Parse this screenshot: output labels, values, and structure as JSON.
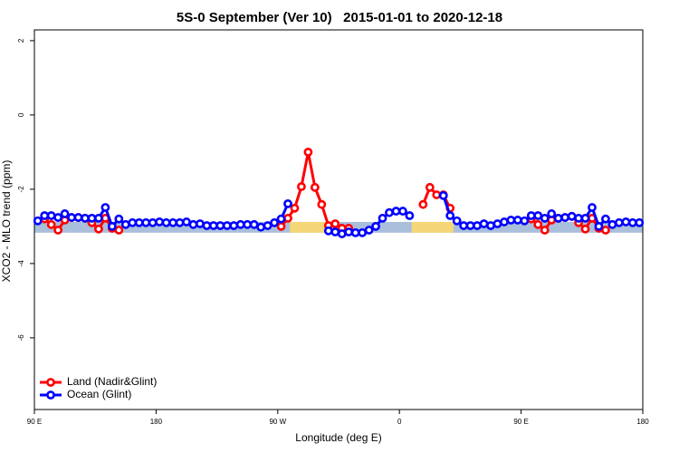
{
  "chart_data": {
    "type": "line",
    "title": "5S-0 September (Ver 10)   2015-01-01 to 2020-12-18",
    "x_label": "Longitude (deg E)",
    "y_label": "XCO2 - MLO trend (ppm)",
    "xlim": [
      90,
      540
    ],
    "xticks": [
      {
        "value": 90,
        "label": "90 E"
      },
      {
        "value": 180,
        "label": "180"
      },
      {
        "value": 270,
        "label": "90 W"
      },
      {
        "value": 360,
        "label": "0"
      },
      {
        "value": 450,
        "label": "90 E"
      },
      {
        "value": 540,
        "label": "180"
      }
    ],
    "ylim": [
      -7.93,
      2.29
    ],
    "yticks": [
      2,
      0,
      -2,
      -4,
      -6
    ],
    "legend": "bottom-left",
    "band": {
      "ylim": [
        -3.17,
        -2.88
      ],
      "color": "#a9bfdc"
    },
    "highlight": {
      "color": "#f5d778",
      "ranges": [
        [
          279,
          306
        ],
        [
          369,
          400
        ]
      ]
    },
    "x": [
      92.5,
      97.5,
      102.5,
      107.5,
      112.5,
      117.5,
      122.5,
      127.5,
      132.5,
      137.5,
      142.5,
      147.5,
      152.5,
      157.5,
      162.5,
      167.5,
      172.5,
      177.5,
      182.5,
      187.5,
      192.5,
      197.5,
      202.5,
      207.5,
      212.5,
      217.5,
      222.5,
      227.5,
      232.5,
      237.5,
      242.5,
      247.5,
      252.5,
      257.5,
      262.5,
      267.5,
      272.5,
      277.5,
      282.5,
      287.5,
      292.5,
      297.5,
      302.5,
      307.5,
      312.5,
      317.5,
      322.5,
      327.5,
      332.5,
      337.5,
      342.5,
      347.5,
      352.5,
      357.5,
      362.5,
      367.5,
      372.5,
      377.5,
      382.5,
      387.5,
      392.5,
      397.5,
      402.5,
      407.5,
      412.5,
      417.5,
      422.5,
      427.5,
      432.5,
      437.5,
      442.5,
      447.5,
      452.5,
      457.5,
      462.5,
      467.5,
      472.5,
      477.5,
      482.5,
      487.5,
      492.5,
      497.5,
      502.5,
      507.5,
      512.5,
      517.5,
      522.5,
      527.5,
      532.5,
      537.5
    ],
    "series": [
      {
        "name": "Land (Nadir&Glint)",
        "color": "#ff0000",
        "values": [
          null,
          -2.8,
          -2.95,
          -3.1,
          -2.83,
          -2.76,
          -2.76,
          -2.78,
          -2.9,
          -3.07,
          -2.78,
          -3.05,
          -3.1,
          null,
          null,
          null,
          null,
          null,
          null,
          null,
          null,
          null,
          null,
          null,
          null,
          null,
          null,
          null,
          null,
          null,
          null,
          null,
          null,
          null,
          null,
          null,
          -3.0,
          -2.78,
          -2.51,
          -1.93,
          -1.0,
          -1.95,
          -2.41,
          -2.98,
          -2.93,
          -3.05,
          -3.05,
          null,
          null,
          null,
          null,
          null,
          null,
          null,
          null,
          null,
          null,
          -2.41,
          -1.95,
          -2.15,
          -2.15,
          -2.51,
          null,
          null,
          null,
          null,
          null,
          null,
          null,
          null,
          null,
          null,
          null,
          -2.8,
          -2.95,
          -3.1,
          -2.83,
          -2.78,
          -2.76,
          -2.73,
          -2.9,
          -3.07,
          -2.78,
          -3.05,
          -3.1,
          null,
          null,
          null,
          null,
          null
        ]
      },
      {
        "name": "Ocean (Glint)",
        "color": "#0000ff",
        "values": [
          -2.85,
          -2.71,
          -2.71,
          -2.76,
          -2.66,
          -2.76,
          -2.76,
          -2.78,
          -2.78,
          -2.78,
          -2.49,
          -3.0,
          -2.8,
          -2.95,
          -2.9,
          -2.9,
          -2.9,
          -2.9,
          -2.88,
          -2.9,
          -2.9,
          -2.9,
          -2.88,
          -2.95,
          -2.93,
          -2.98,
          -2.98,
          -2.98,
          -2.98,
          -2.98,
          -2.95,
          -2.95,
          -2.95,
          -3.02,
          -2.98,
          -2.9,
          -2.8,
          -2.39,
          null,
          null,
          null,
          null,
          null,
          -3.12,
          -3.15,
          -3.2,
          -3.15,
          -3.17,
          -3.17,
          -3.1,
          -3.0,
          -2.78,
          -2.63,
          -2.59,
          -2.59,
          -2.71,
          null,
          null,
          null,
          null,
          -2.17,
          -2.71,
          -2.85,
          -2.98,
          -2.98,
          -2.98,
          -2.93,
          -2.98,
          -2.93,
          -2.88,
          -2.83,
          -2.83,
          -2.85,
          -2.71,
          -2.71,
          -2.78,
          -2.66,
          -2.78,
          -2.76,
          -2.73,
          -2.78,
          -2.78,
          -2.49,
          -3.0,
          -2.8,
          -2.95,
          -2.9,
          -2.88,
          -2.9,
          -2.9
        ]
      }
    ]
  }
}
